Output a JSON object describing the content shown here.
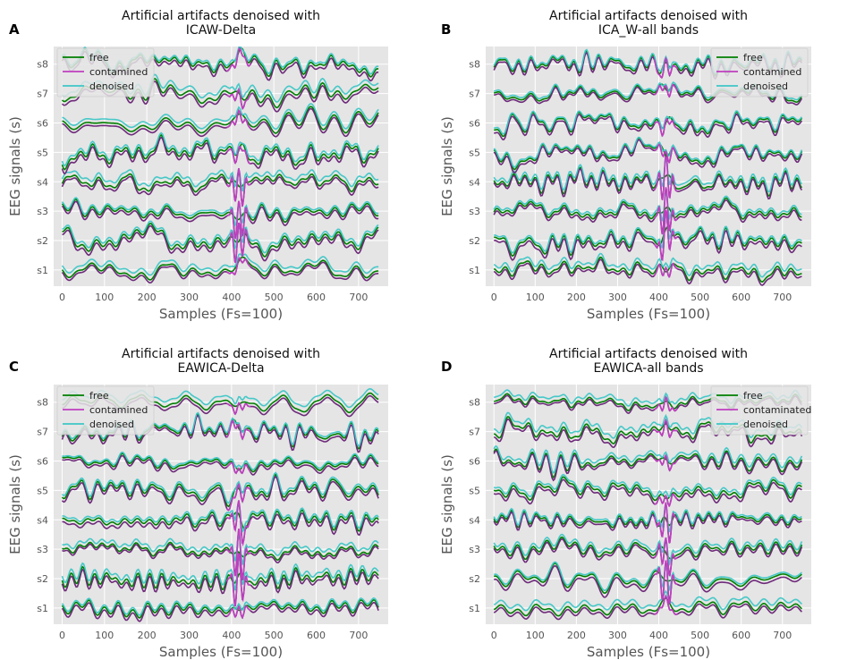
{
  "colors": {
    "free": "#007f00",
    "contaminated": "#bf3fbf",
    "contaminated_dark": "#6e2a7a",
    "denoised": "#3ec6c6",
    "denoised_dark": "#2b7ca5",
    "plot_bg": "#e5e5e5",
    "grid": "#ffffff",
    "text": "#555555",
    "title": "#111111"
  },
  "chart_data": [
    {
      "type": "line",
      "panel_label": "A",
      "title": "Artificial artifacts denoised with\nICAW-Delta",
      "xlabel": "Samples (Fs=100)",
      "ylabel": "EEG signals (s)",
      "xlim": [
        -20,
        770
      ],
      "ylim": [
        0.45,
        8.6
      ],
      "xticks": [
        0,
        100,
        200,
        300,
        400,
        500,
        600,
        700
      ],
      "xtick_labels": [
        "0",
        "100",
        "200",
        "300",
        "400",
        "500",
        "600",
        "700"
      ],
      "yticks": [
        1,
        2,
        3,
        4,
        5,
        6,
        7,
        8
      ],
      "ytick_labels": [
        "s1",
        "s2",
        "s3",
        "s4",
        "s5",
        "s6",
        "s7",
        "s8"
      ],
      "artifact_window": [
        395,
        440
      ],
      "legend_position": "top-left",
      "legend": [
        "free",
        "contamined",
        "denoised"
      ],
      "series": [
        {
          "name": "free",
          "color": "free"
        },
        {
          "name": "contamined",
          "color": "contaminated"
        },
        {
          "name": "denoised",
          "color": "denoised"
        }
      ],
      "seed": 11
    },
    {
      "type": "line",
      "panel_label": "B",
      "title": "Artificial artifacts denoised with\nICA_W-all bands",
      "xlabel": "Samples (Fs=100)",
      "ylabel": "EEG signals (s)",
      "xlim": [
        -20,
        770
      ],
      "ylim": [
        0.45,
        8.6
      ],
      "xticks": [
        0,
        100,
        200,
        300,
        400,
        500,
        600,
        700
      ],
      "xtick_labels": [
        "0",
        "100",
        "200",
        "300",
        "400",
        "500",
        "600",
        "700"
      ],
      "yticks": [
        1,
        2,
        3,
        4,
        5,
        6,
        7,
        8
      ],
      "ytick_labels": [
        "s1",
        "s2",
        "s3",
        "s4",
        "s5",
        "s6",
        "s7",
        "s8"
      ],
      "artifact_window": [
        395,
        440
      ],
      "legend_position": "top-right",
      "legend": [
        "free",
        "contamined",
        "denoised"
      ],
      "series": [
        {
          "name": "free",
          "color": "free"
        },
        {
          "name": "contamined",
          "color": "contaminated"
        },
        {
          "name": "denoised",
          "color": "denoised"
        }
      ],
      "seed": 23
    },
    {
      "type": "line",
      "panel_label": "C",
      "title": "Artificial artifacts denoised with\nEAWICA-Delta",
      "xlabel": "Samples (Fs=100)",
      "ylabel": "EEG signals (s)",
      "xlim": [
        -20,
        770
      ],
      "ylim": [
        0.45,
        8.6
      ],
      "xticks": [
        0,
        100,
        200,
        300,
        400,
        500,
        600,
        700
      ],
      "xtick_labels": [
        "0",
        "100",
        "200",
        "300",
        "400",
        "500",
        "600",
        "700"
      ],
      "yticks": [
        1,
        2,
        3,
        4,
        5,
        6,
        7,
        8
      ],
      "ytick_labels": [
        "s1",
        "s2",
        "s3",
        "s4",
        "s5",
        "s6",
        "s7",
        "s8"
      ],
      "artifact_window": [
        395,
        440
      ],
      "legend_position": "top-left",
      "legend": [
        "free",
        "contamined",
        "denoised"
      ],
      "series": [
        {
          "name": "free",
          "color": "free"
        },
        {
          "name": "contamined",
          "color": "contaminated"
        },
        {
          "name": "denoised",
          "color": "denoised"
        }
      ],
      "seed": 37
    },
    {
      "type": "line",
      "panel_label": "D",
      "title": "Artificial artifacts denoised with\nEAWICA-all bands",
      "xlabel": "Samples (Fs=100)",
      "ylabel": "EEG signals (s)",
      "xlim": [
        -20,
        770
      ],
      "ylim": [
        0.45,
        8.6
      ],
      "xticks": [
        0,
        100,
        200,
        300,
        400,
        500,
        600,
        700
      ],
      "xtick_labels": [
        "0",
        "100",
        "200",
        "300",
        "400",
        "500",
        "600",
        "700"
      ],
      "yticks": [
        1,
        2,
        3,
        4,
        5,
        6,
        7,
        8
      ],
      "ytick_labels": [
        "s1",
        "s2",
        "s3",
        "s4",
        "s5",
        "s6",
        "s7",
        "s8"
      ],
      "artifact_window": [
        395,
        440
      ],
      "legend_position": "top-right",
      "legend": [
        "free",
        "contaminated",
        "denoised"
      ],
      "series": [
        {
          "name": "free",
          "color": "free"
        },
        {
          "name": "contaminated",
          "color": "contaminated"
        },
        {
          "name": "denoised",
          "color": "denoised"
        }
      ],
      "seed": 53
    }
  ]
}
